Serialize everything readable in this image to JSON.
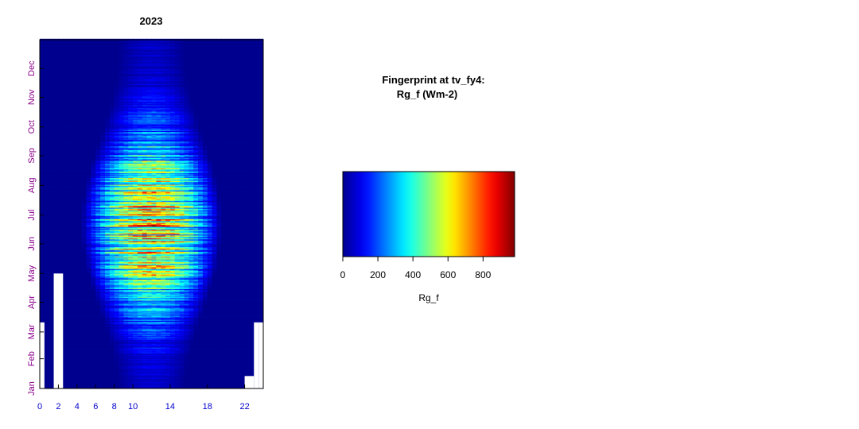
{
  "chart_data": [
    {
      "type": "heatmap",
      "title": "2023",
      "x_label": "",
      "y_label": "",
      "x_ticks": [
        0,
        2,
        4,
        6,
        8,
        10,
        14,
        18,
        22
      ],
      "x_range": [
        0,
        24
      ],
      "y_ticks": [
        "Jan",
        "Feb",
        "Mar",
        "Apr",
        "May",
        "Jun",
        "Jul",
        "Aug",
        "Sep",
        "Oct",
        "Nov",
        "Dec"
      ],
      "y_range_days": [
        1,
        365
      ],
      "variable": "Rg_f",
      "units": "Wm-2",
      "value_range": [
        0,
        980
      ],
      "seasonal_peak_doy": 172,
      "daylight_hours_winter": [
        8.5,
        15.5
      ],
      "daylight_hours_summer": [
        4.5,
        19.5
      ],
      "solar_noon_hour": 12,
      "peak_value_summer": 900,
      "peak_value_winter": 90,
      "missing_data_blocks": [
        {
          "hour_start": 0.0,
          "hour_end": 0.5,
          "day_start": 1,
          "day_end": 70
        },
        {
          "hour_start": 1.5,
          "hour_end": 2.5,
          "day_start": 1,
          "day_end": 121
        },
        {
          "hour_start": 22.0,
          "hour_end": 23.0,
          "day_start": 1,
          "day_end": 14
        },
        {
          "hour_start": 23.0,
          "hour_end": 23.5,
          "day_start": 1,
          "day_end": 70
        },
        {
          "hour_start": 23.5,
          "hour_end": 24.0,
          "day_start": 1,
          "day_end": 70
        }
      ]
    },
    {
      "type": "colorbar",
      "title_line1": "Fingerprint at tv_fy4:",
      "title_line2": "Rg_f (Wm-2)",
      "xlabel": "Rg_f",
      "ticks": [
        0,
        200,
        400,
        600,
        800
      ],
      "range": [
        0,
        980
      ],
      "colormap": [
        "#00008F",
        "#0000FF",
        "#00FFFF",
        "#FFFF00",
        "#FF0000",
        "#800000"
      ]
    }
  ],
  "colors": {
    "tick_month": "#8B008B",
    "tick_hour": "#0000CD",
    "axis": "#000000"
  }
}
